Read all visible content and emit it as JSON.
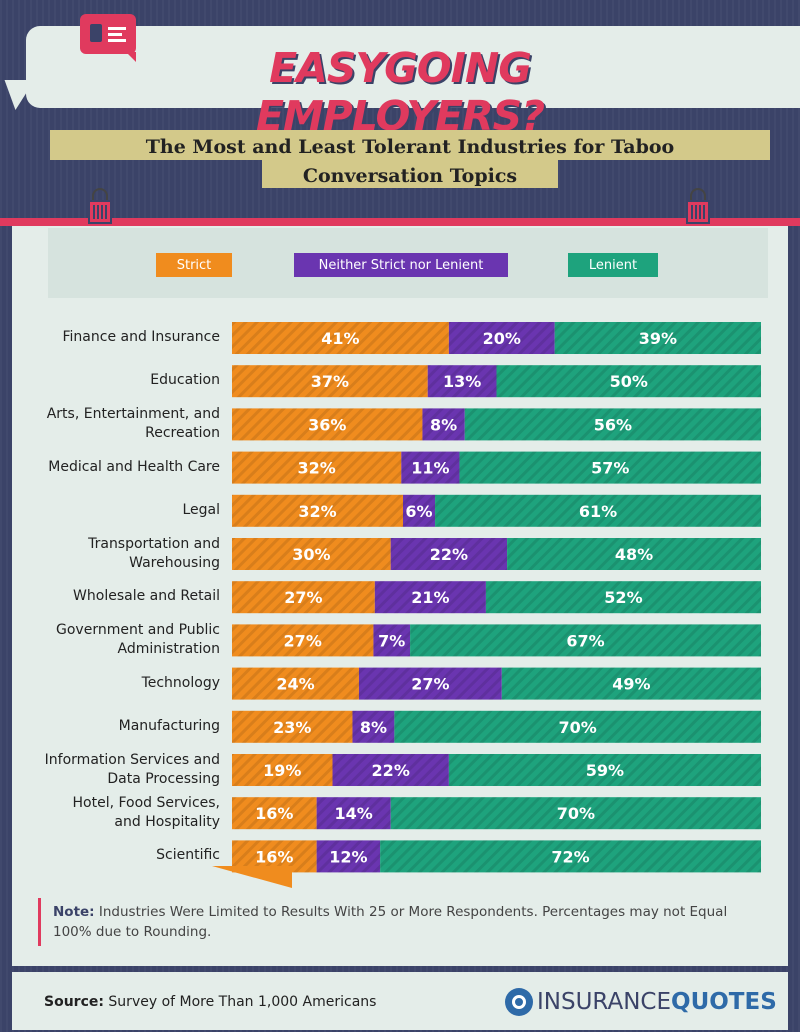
{
  "header": {
    "title": "EASYGOING EMPLOYERS?",
    "subtitle_line1": "The Most and Least Tolerant Industries for Taboo",
    "subtitle_line2": "Conversation Topics"
  },
  "legend": {
    "strict": "Strict",
    "neither": "Neither Strict nor Lenient",
    "lenient": "Lenient"
  },
  "colors": {
    "strict": "#f08c1e",
    "neither": "#6a35b0",
    "lenient": "#1ea37d",
    "accent": "#e03a5e",
    "navy": "#3b4368"
  },
  "chart_data": {
    "type": "bar",
    "orientation": "horizontal",
    "stacked": true,
    "categories": [
      "Finance and Insurance",
      "Education",
      "Arts, Entertainment, and Recreation",
      "Medical and Health Care",
      "Legal",
      "Transportation and Warehousing",
      "Wholesale and Retail",
      "Government and Public Administration",
      "Technology",
      "Manufacturing",
      "Information Services and Data Processing",
      "Hotel, Food Services, and Hospitality",
      "Scientific"
    ],
    "series": [
      {
        "name": "Strict",
        "values": [
          41,
          37,
          36,
          32,
          32,
          30,
          27,
          27,
          24,
          23,
          19,
          16,
          16
        ]
      },
      {
        "name": "Neither Strict nor Lenient",
        "values": [
          20,
          13,
          8,
          11,
          6,
          22,
          21,
          7,
          27,
          8,
          22,
          14,
          12
        ]
      },
      {
        "name": "Lenient",
        "values": [
          39,
          50,
          56,
          57,
          61,
          48,
          52,
          67,
          49,
          70,
          59,
          70,
          72
        ]
      }
    ],
    "unit": "%",
    "legend_position": "top"
  },
  "note": {
    "label": "Note:",
    "text": "Industries Were Limited to Results With 25 or More Respondents. Percentages may not Equal 100% due to Rounding."
  },
  "footer": {
    "source_label": "Source:",
    "source_text": "Survey of More Than 1,000 Americans",
    "logo_part1": "INSURANCE",
    "logo_part2": "QUOTES"
  }
}
